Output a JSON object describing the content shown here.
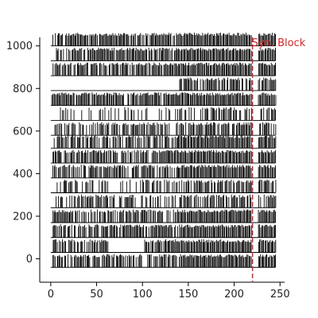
{
  "chart_data": {
    "type": "line",
    "title": "",
    "xlabel": "",
    "ylabel": "",
    "xlim": [
      -12,
      255
    ],
    "ylim": [
      -110,
      1040
    ],
    "xticks": [
      0,
      50,
      100,
      150,
      200,
      250
    ],
    "yticks": [
      0,
      200,
      400,
      600,
      800,
      1000
    ],
    "grid": false,
    "legend": "none",
    "trace_color": "#000000",
    "annotation": {
      "label": "Syn. Block",
      "x": 220,
      "color": "#d62728",
      "linestyle": "dashed"
    },
    "block_gap": [
      219,
      226
    ],
    "series": [
      {
        "offset": 1000,
        "density": 0.82,
        "start": 0,
        "gaps": [
          [
            0,
            2
          ]
        ],
        "x_end": 245
      },
      {
        "offset": 930,
        "density": 0.85,
        "start": 0,
        "gaps": [
          [
            0,
            2
          ]
        ],
        "x_end": 245
      },
      {
        "offset": 860,
        "density": 0.85,
        "start": 0,
        "gaps": [
          [
            0,
            2
          ]
        ],
        "x_end": 245
      },
      {
        "offset": 790,
        "density": 0.6,
        "start": 0,
        "gaps": [
          [
            0,
            140
          ]
        ],
        "x_end": 245
      },
      {
        "offset": 720,
        "density": 0.9,
        "start": 0,
        "gaps": [
          [
            0,
            0
          ]
        ],
        "x_end": 245
      },
      {
        "offset": 650,
        "density": 0.35,
        "start": 0,
        "gaps": [
          [
            0,
            10
          ]
        ],
        "x_end": 245
      },
      {
        "offset": 580,
        "density": 0.6,
        "start": 0,
        "gaps": [
          [
            0,
            4
          ]
        ],
        "x_end": 245
      },
      {
        "offset": 520,
        "density": 0.75,
        "start": 0,
        "gaps": [
          [
            0,
            2
          ]
        ],
        "x_end": 245
      },
      {
        "offset": 450,
        "density": 0.8,
        "start": 0,
        "gaps": [
          [
            0,
            2
          ]
        ],
        "x_end": 245
      },
      {
        "offset": 380,
        "density": 0.8,
        "start": 0,
        "gaps": [
          [
            0,
            2
          ]
        ],
        "x_end": 245
      },
      {
        "offset": 310,
        "density": 0.55,
        "start": 0,
        "gaps": [
          [
            0,
            4
          ],
          [
            62,
            70
          ]
        ],
        "x_end": 245
      },
      {
        "offset": 240,
        "density": 0.6,
        "start": 0,
        "gaps": [
          [
            0,
            4
          ]
        ],
        "x_end": 245
      },
      {
        "offset": 170,
        "density": 0.75,
        "start": 0,
        "gaps": [
          [
            0,
            2
          ]
        ],
        "x_end": 245
      },
      {
        "offset": 100,
        "density": 0.8,
        "start": 0,
        "gaps": [
          [
            0,
            2
          ]
        ],
        "x_end": 245
      },
      {
        "offset": 30,
        "density": 0.8,
        "start": 0,
        "gaps": [
          [
            0,
            2
          ],
          [
            62,
            102
          ]
        ],
        "x_end": 245
      },
      {
        "offset": -40,
        "density": 0.8,
        "start": 0,
        "gaps": [
          [
            0,
            2
          ]
        ],
        "x_end": 245
      }
    ]
  }
}
